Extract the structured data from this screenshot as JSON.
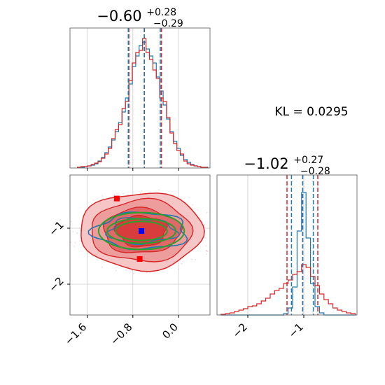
{
  "chart_data": {
    "type": "corner",
    "annotation": "KL = 0.0295",
    "colors": {
      "posterior_a": "#1f77b4",
      "posterior_b": "#d62728",
      "contour_fit": "#2ca02c",
      "truth_marker": "#0000ff",
      "sample_marker": "#ff0000"
    },
    "params": [
      {
        "median": "−0.60",
        "plus": "+0.28",
        "minus": "−0.29",
        "quantiles_blue": [
          -0.88,
          -0.6,
          -0.32
        ],
        "quantiles_red": [
          -0.87,
          -0.6,
          -0.3
        ],
        "xlim": [
          -1.9,
          0.55
        ],
        "ticks": [
          -1.6,
          -0.8,
          0.0
        ],
        "tick_labels": [
          "−1.6",
          "−0.8",
          "0.0"
        ]
      },
      {
        "median": "−1.02",
        "plus": "+0.27",
        "minus": "−0.28",
        "quantiles_blue": [
          -1.22,
          -1.02,
          -0.83
        ],
        "quantiles_red": [
          -1.3,
          -1.02,
          -0.75
        ],
        "xlim": [
          -2.55,
          -0.05
        ],
        "ticks": [
          -2,
          -1
        ],
        "tick_labels": [
          "−2",
          "−1"
        ]
      }
    ],
    "hist_param1": {
      "x": [
        -1.74,
        -1.68,
        -1.62,
        -1.56,
        -1.5,
        -1.44,
        -1.38,
        -1.32,
        -1.26,
        -1.2,
        -1.14,
        -1.08,
        -1.02,
        -0.96,
        -0.9,
        -0.84,
        -0.78,
        -0.72,
        -0.66,
        -0.6,
        -0.54,
        -0.48,
        -0.42,
        -0.36,
        -0.3,
        -0.24,
        -0.18,
        -0.12,
        -0.06,
        0.0,
        0.06,
        0.12,
        0.18,
        0.24,
        0.3,
        0.36,
        0.42,
        0.48
      ],
      "series": [
        {
          "name": "",
          "values": [
            1,
            1,
            2,
            3,
            4,
            6,
            10,
            15,
            22,
            30,
            40,
            52,
            65,
            80,
            100,
            120,
            145,
            160,
            175,
            180,
            170,
            160,
            150,
            130,
            110,
            90,
            70,
            52,
            38,
            28,
            18,
            12,
            8,
            5,
            3,
            2,
            1,
            1
          ]
        },
        {
          "name": "",
          "values": [
            1,
            2,
            2,
            3,
            5,
            7,
            9,
            14,
            20,
            28,
            42,
            55,
            62,
            85,
            95,
            125,
            150,
            165,
            168,
            185,
            165,
            155,
            140,
            128,
            100,
            95,
            72,
            50,
            35,
            25,
            20,
            10,
            6,
            4,
            3,
            2,
            1,
            1
          ]
        }
      ]
    },
    "hist_param2": {
      "x": [
        -2.44,
        -2.36,
        -2.28,
        -2.2,
        -2.12,
        -2.04,
        -1.96,
        -1.88,
        -1.8,
        -1.72,
        -1.64,
        -1.56,
        -1.48,
        -1.4,
        -1.32,
        -1.24,
        -1.16,
        -1.08,
        -1.0,
        -0.92,
        -0.84,
        -0.76,
        -0.68,
        -0.6,
        -0.52,
        -0.44,
        -0.36,
        -0.28,
        -0.2,
        -0.12
      ],
      "series": [
        {
          "name": "",
          "values": [
            0,
            0,
            0,
            0,
            0,
            0,
            0,
            0,
            0,
            0,
            0,
            0,
            0,
            0,
            2,
            10,
            40,
            120,
            175,
            110,
            45,
            12,
            3,
            0,
            0,
            0,
            0,
            0,
            0,
            0
          ]
        },
        {
          "name": "",
          "values": [
            1,
            2,
            3,
            5,
            7,
            9,
            12,
            13,
            16,
            20,
            24,
            30,
            35,
            38,
            45,
            50,
            58,
            62,
            72,
            68,
            55,
            42,
            30,
            22,
            16,
            10,
            7,
            5,
            3,
            2
          ]
        }
      ]
    },
    "scatter": {
      "xlim": [
        -1.9,
        0.55
      ],
      "ylim": [
        -2.55,
        -0.05
      ],
      "truth": {
        "x": -0.65,
        "y": -1.05
      },
      "samples": [
        {
          "x": -1.08,
          "y": -0.47
        },
        {
          "x": -0.68,
          "y": -1.55
        }
      ],
      "fits": [
        {
          "cx": -0.65,
          "cy": -1.05,
          "rx": 0.6,
          "ry": 0.22
        },
        {
          "cx": -0.65,
          "cy": -1.05,
          "rx": 0.75,
          "ry": 0.33
        },
        {
          "cx": -0.65,
          "cy": -1.05,
          "rx": 0.45,
          "ry": 0.17
        }
      ]
    }
  }
}
